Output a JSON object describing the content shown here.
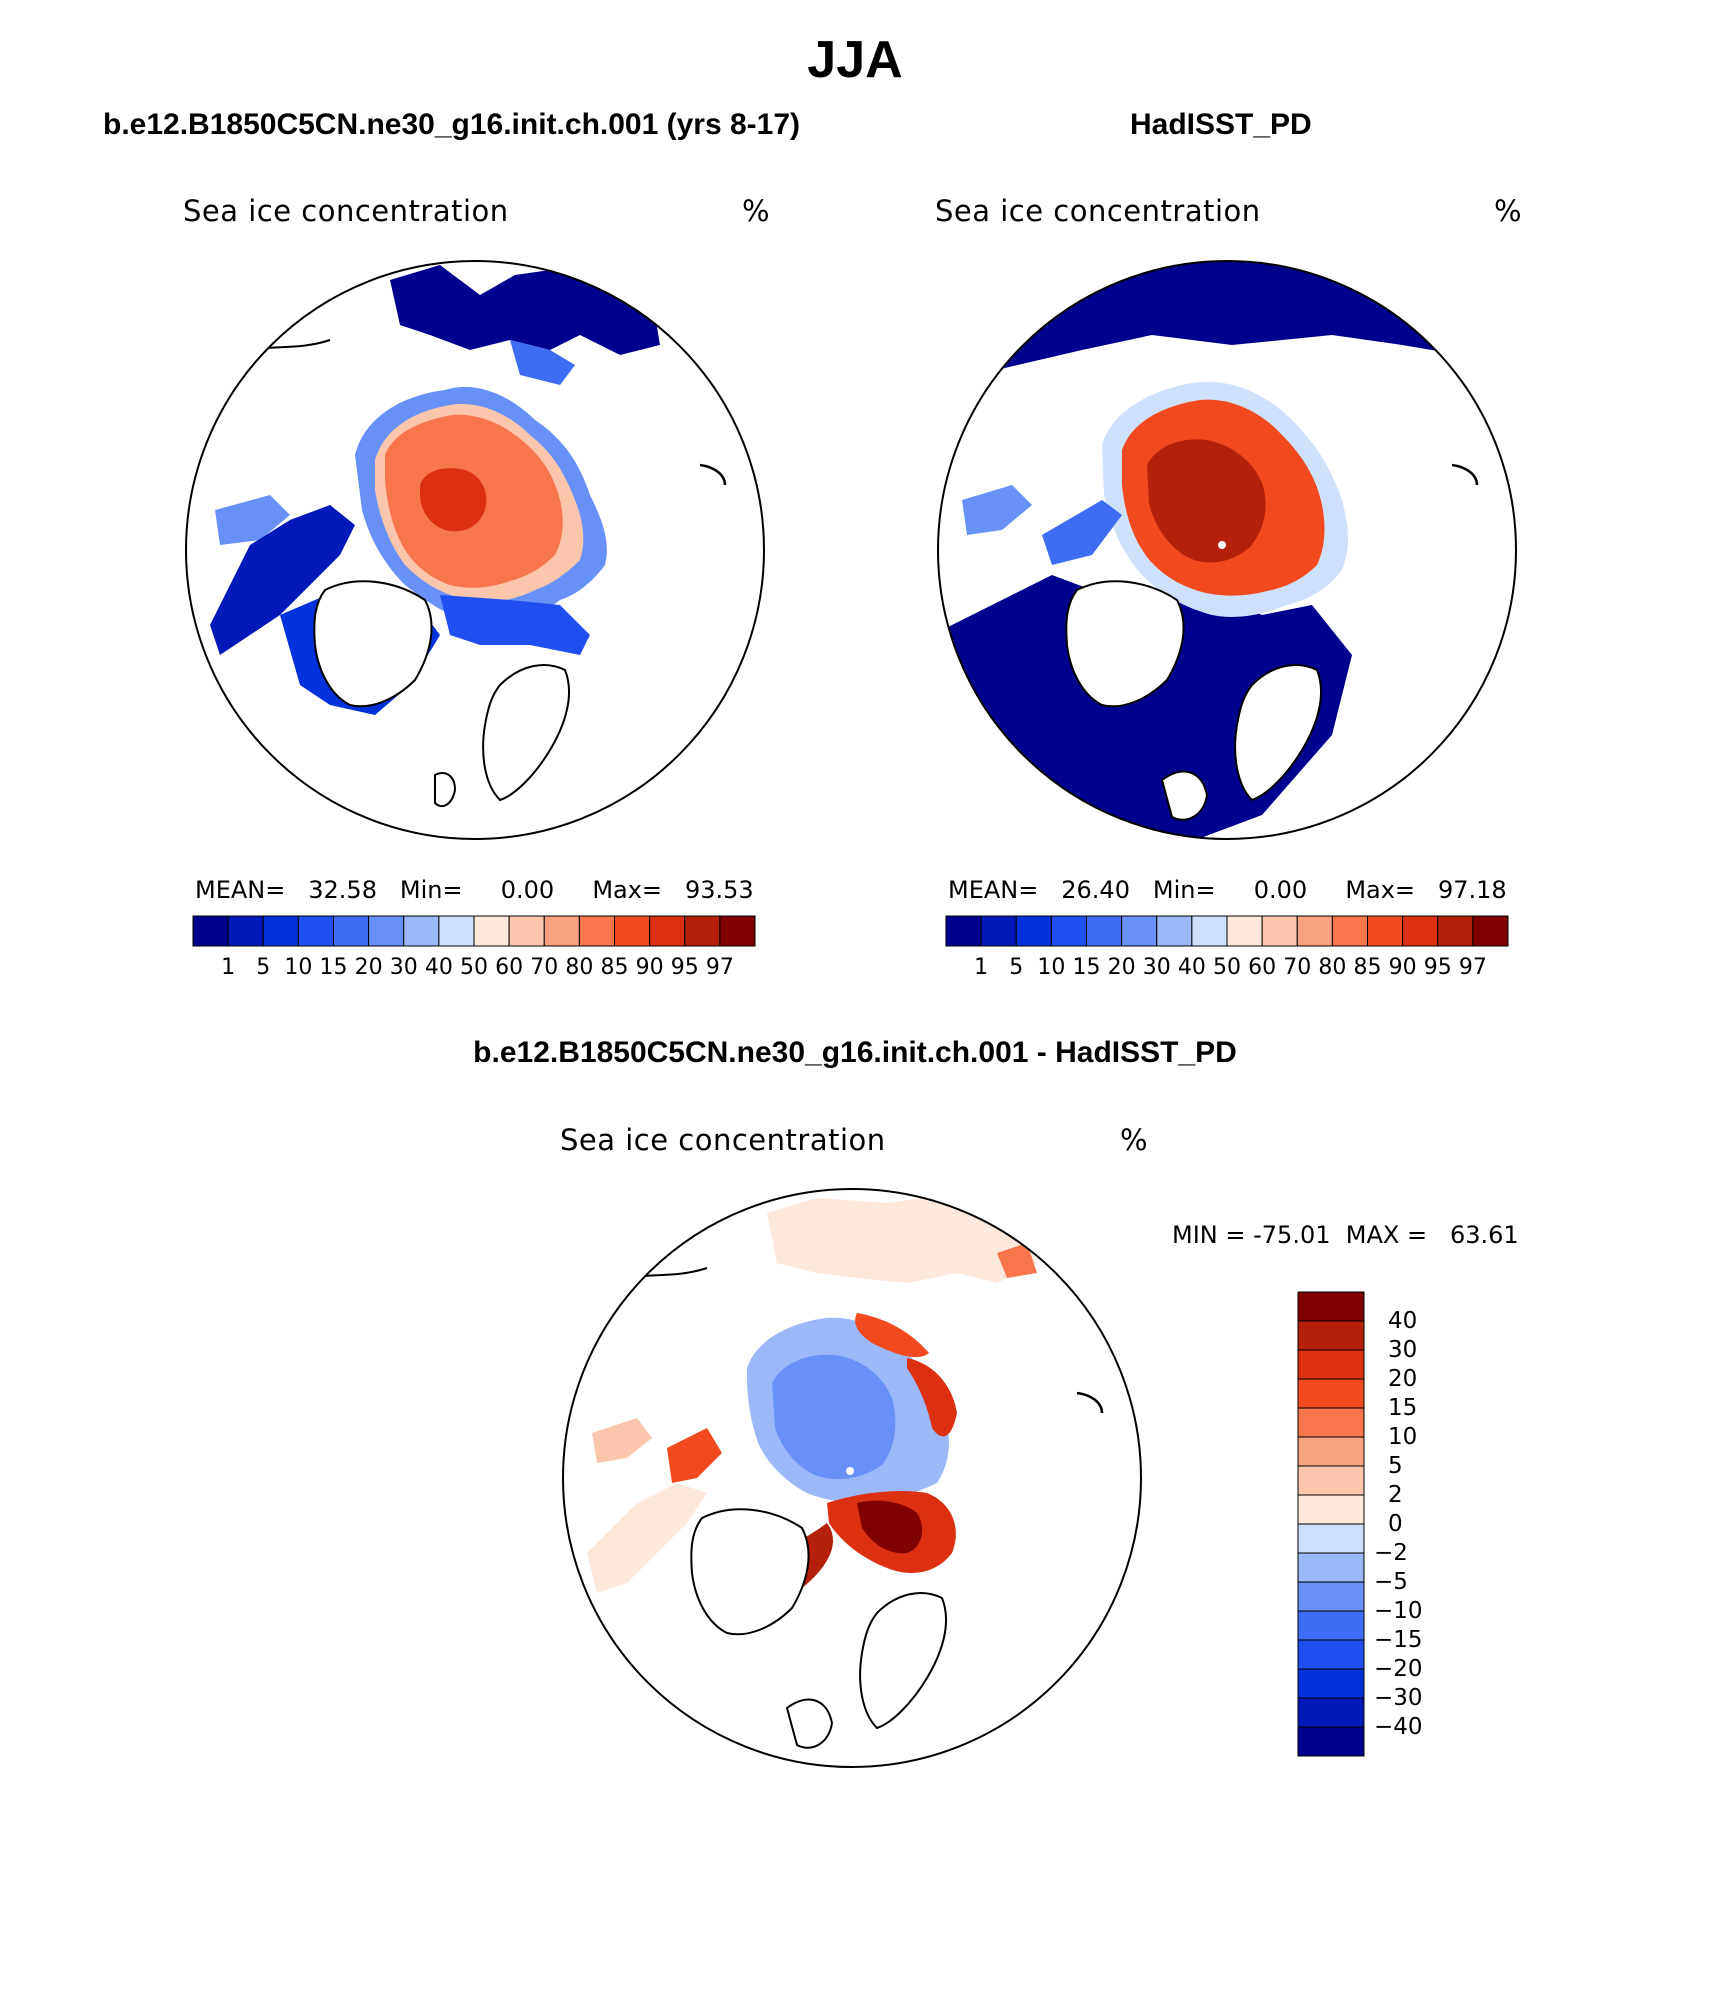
{
  "figure": {
    "season": "JJA",
    "panels": [
      {
        "id": "model",
        "case_title": "b.e12.B1850C5CN.ne30_g16.init.ch.001 (yrs 8-17)",
        "variable": "Sea ice concentration",
        "units": "%",
        "stats": {
          "mean_label": "MEAN=",
          "mean": "32.58",
          "min_label": "Min=",
          "min": "0.00",
          "max_label": "Max=",
          "max": "93.53"
        }
      },
      {
        "id": "obs",
        "case_title": "HadISST_PD",
        "variable": "Sea ice concentration",
        "units": "%",
        "stats": {
          "mean_label": "MEAN=",
          "mean": "26.40",
          "min_label": "Min=",
          "min": "0.00",
          "max_label": "Max=",
          "max": "97.18"
        }
      },
      {
        "id": "diff",
        "case_title": "b.e12.B1850C5CN.ne30_g16.init.ch.001 - HadISST_PD",
        "variable": "Sea ice concentration",
        "units": "%",
        "stats": {
          "min_label": "MIN =",
          "min": "-75.01",
          "max_label": "MAX =",
          "max": "63.61"
        }
      }
    ]
  },
  "colorbar_abs": {
    "levels": [
      "1",
      "5",
      "10",
      "15",
      "20",
      "30",
      "40",
      "50",
      "60",
      "70",
      "80",
      "85",
      "90",
      "95",
      "97"
    ],
    "colors": [
      "#00008f",
      "#0019b8",
      "#0032dc",
      "#1f4ff0",
      "#3d6cf5",
      "#6791f7",
      "#9cb8f8",
      "#cfe0fb",
      "#fde8dc",
      "#fcc6ac",
      "#f9a27f",
      "#f7764c",
      "#f24a1e",
      "#dc3010",
      "#b5200b",
      "#800000"
    ]
  },
  "colorbar_diff": {
    "levels": [
      "-40",
      "-30",
      "-20",
      "-15",
      "-10",
      "-5",
      "-2",
      "0",
      "2",
      "5",
      "10",
      "15",
      "20",
      "30",
      "40"
    ],
    "colors": [
      "#00008f",
      "#0019b8",
      "#0032dc",
      "#1f4ff0",
      "#3d6cf5",
      "#6791f7",
      "#9cb8f8",
      "#cfe0fb",
      "#fde8dc",
      "#fcc6ac",
      "#f9a27f",
      "#f7764c",
      "#f24a1e",
      "#dc3010",
      "#b5200b",
      "#800000"
    ]
  }
}
